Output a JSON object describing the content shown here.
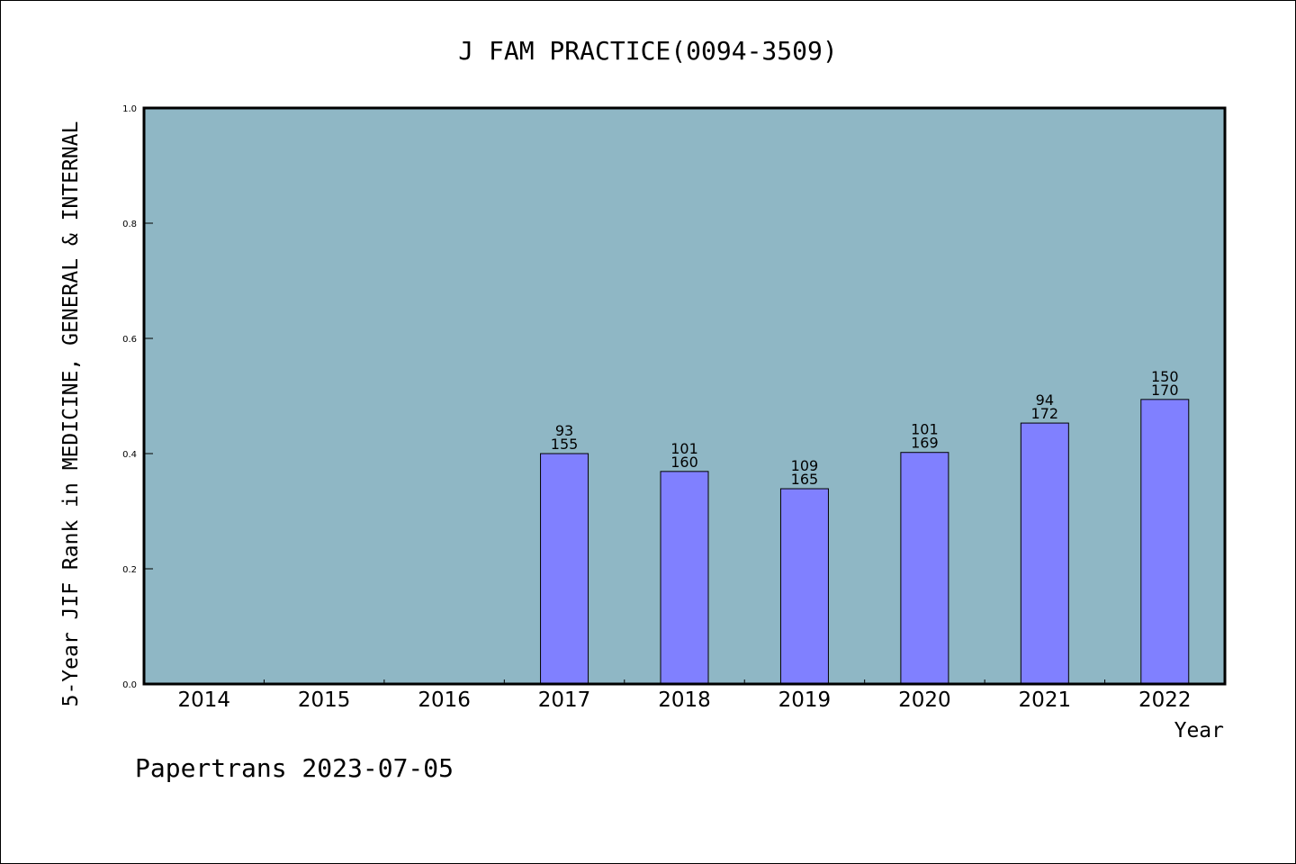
{
  "chart_data": {
    "type": "bar",
    "title": "J FAM PRACTICE(0094-3509)",
    "xlabel": "Year",
    "ylabel": "5-Year JIF Rank in MEDICINE, GENERAL & INTERNAL",
    "categories": [
      "2014",
      "2015",
      "2016",
      "2017",
      "2018",
      "2019",
      "2020",
      "2021",
      "2022"
    ],
    "values": [
      null,
      null,
      null,
      0.4,
      0.369,
      0.339,
      0.402,
      0.453,
      0.494
    ],
    "labels_top": [
      "",
      "",
      "",
      "93",
      "101",
      "109",
      "101",
      "94",
      "150"
    ],
    "labels_bottom": [
      "",
      "",
      "",
      "155",
      "160",
      "165",
      "169",
      "172",
      "170"
    ],
    "ylim": [
      0,
      1.0
    ],
    "yticks": [
      "0.0",
      "0.2",
      "0.4",
      "0.6",
      "0.8",
      "1.0"
    ],
    "grid": false,
    "colors": {
      "plot_bg": "#8fb7c5",
      "bar": "#8080ff"
    }
  },
  "footer": {
    "text": "Papertrans 2023-07-05"
  }
}
